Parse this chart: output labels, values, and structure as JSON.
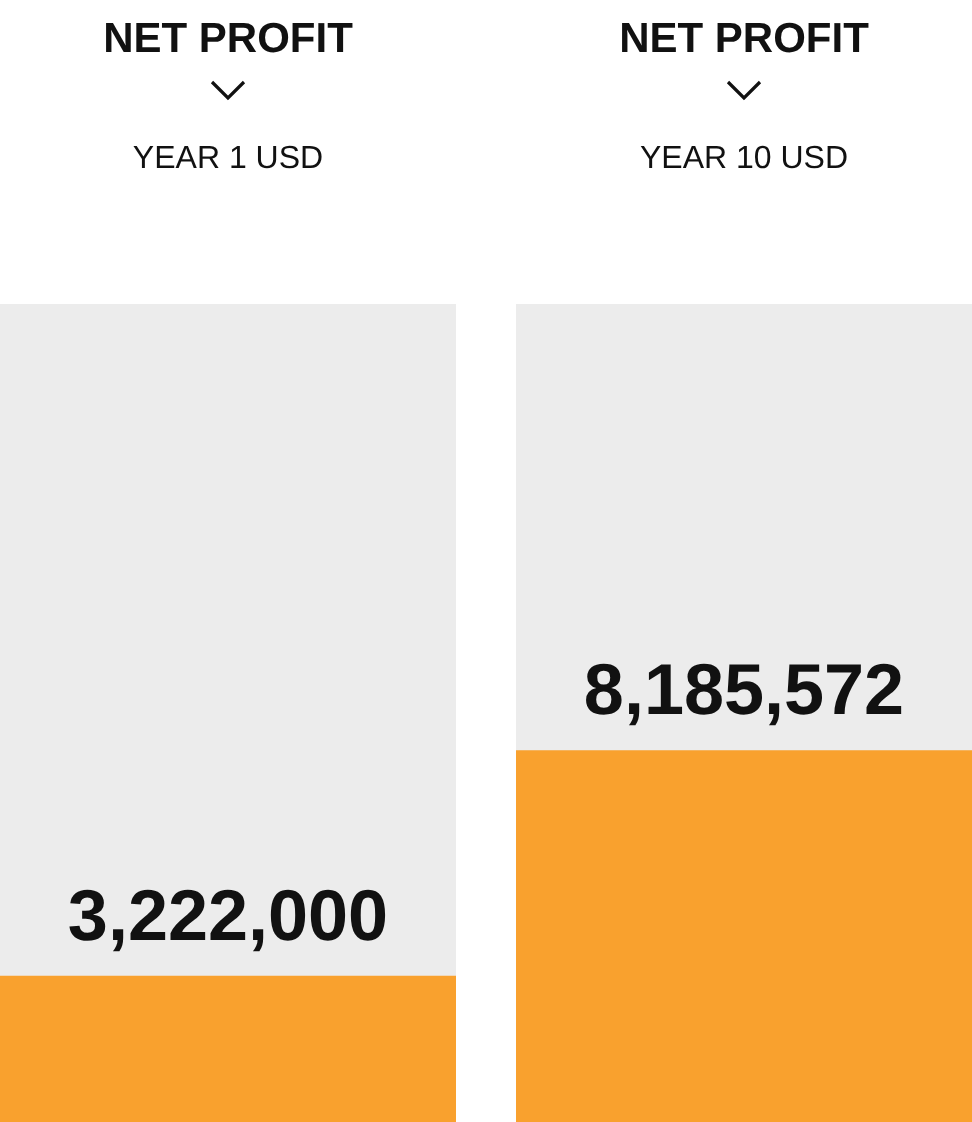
{
  "chart_data": {
    "type": "bar",
    "title": "NET PROFIT",
    "categories": [
      "YEAR 1 USD",
      "YEAR 10 USD"
    ],
    "values": [
      3222000,
      8185572
    ],
    "color": "#f9a12e",
    "value_labels": [
      "3,222,000",
      "8,185,572"
    ]
  }
}
